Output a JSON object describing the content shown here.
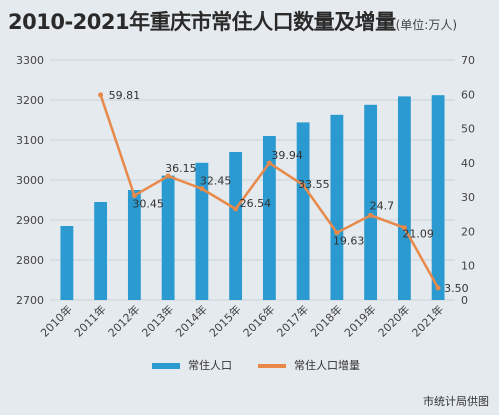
{
  "header": {
    "title": "2010-2021年重庆市常住人口数量及增量",
    "unit": "(单位:万人)"
  },
  "footer": {
    "source": "市统计局供图"
  },
  "colors": {
    "bar": "#2b9ad0",
    "line": "#e8894a",
    "grid": "#c4ccd3",
    "text": "#444444"
  },
  "chart_data": {
    "type": "bar",
    "categories": [
      "2010年",
      "2011年",
      "2012年",
      "2013年",
      "2014年",
      "2015年",
      "2016年",
      "2017年",
      "2018年",
      "2019年",
      "2020年",
      "2021年"
    ],
    "series": [
      {
        "name": "常住人口",
        "type": "bar",
        "axis": "left",
        "values": [
          2885,
          2945,
          2975,
          3011,
          3043,
          3070,
          3110,
          3144,
          3163,
          3188,
          3209,
          3212
        ]
      },
      {
        "name": "常住人口增量",
        "type": "line",
        "axis": "right",
        "values": [
          null,
          59.81,
          30.45,
          36.15,
          32.45,
          26.54,
          39.94,
          33.55,
          19.63,
          24.7,
          21.09,
          3.5
        ],
        "labels": [
          "",
          "59.81",
          "30.45",
          "36.15",
          "32.45",
          "26.54",
          "39.94",
          "33.55",
          "19.63",
          "24.7",
          "21.09",
          "3.50"
        ]
      }
    ],
    "y_left": {
      "min": 2700,
      "max": 3300,
      "ticks": [
        "2700",
        "2800",
        "2900",
        "3000",
        "3100",
        "3200",
        "3300"
      ]
    },
    "y_right": {
      "min": 0,
      "max": 70,
      "ticks": [
        "0",
        "10",
        "20",
        "30",
        "40",
        "50",
        "60",
        "70"
      ]
    },
    "grid": true,
    "legend_position": "bottom"
  }
}
